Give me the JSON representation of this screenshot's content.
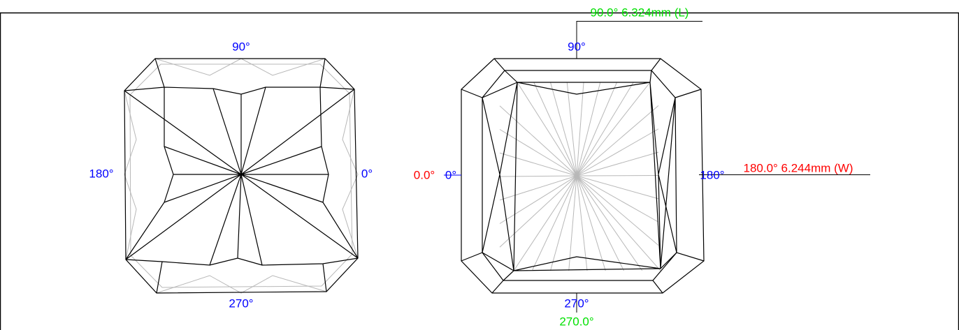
{
  "left_view": {
    "labels": {
      "top": "90°",
      "left": "180°",
      "right": "0°",
      "bottom": "270°"
    }
  },
  "right_view": {
    "labels": {
      "length": "90.0° 6.324mm (L)",
      "top": "90°",
      "left_value": "0.0°",
      "left": "0°",
      "right": "180°",
      "width": "180.0° 6.244mm (W)",
      "bottom": "270°",
      "bottom_value": "270.0°"
    }
  }
}
